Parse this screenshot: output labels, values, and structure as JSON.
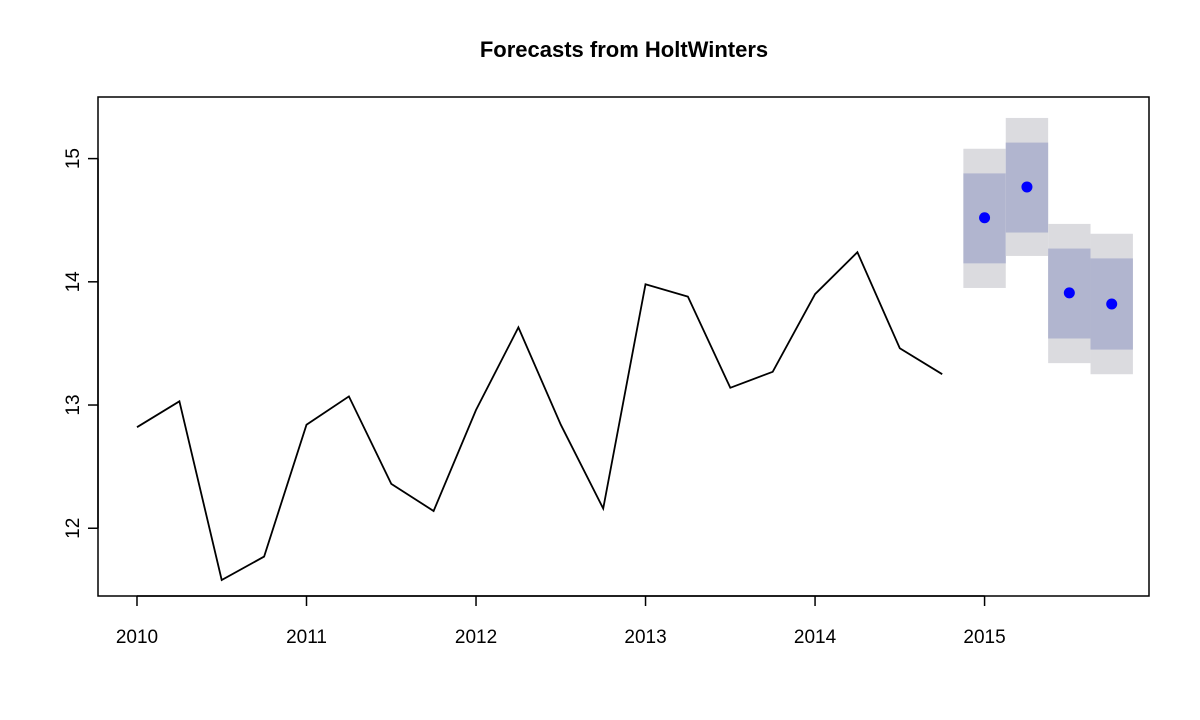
{
  "chart_data": {
    "type": "line",
    "title": "Forecasts from HoltWinters",
    "xlabel": "",
    "ylabel": "",
    "xlim": [
      2009.77,
      2015.97
    ],
    "ylim": [
      11.45,
      15.5
    ],
    "x_ticks": [
      2010,
      2011,
      2012,
      2013,
      2014,
      2015
    ],
    "x_tick_labels": [
      "2010",
      "2011",
      "2012",
      "2013",
      "2014",
      "2015"
    ],
    "y_ticks": [
      12,
      13,
      14,
      15
    ],
    "y_tick_labels": [
      "12",
      "13",
      "14",
      "15"
    ],
    "grid": false,
    "legend": "none",
    "observed": {
      "x": [
        2010.0,
        2010.25,
        2010.5,
        2010.75,
        2011.0,
        2011.25,
        2011.5,
        2011.75,
        2012.0,
        2012.25,
        2012.5,
        2012.75,
        2013.0,
        2013.25,
        2013.5,
        2013.75,
        2014.0,
        2014.25,
        2014.5,
        2014.75
      ],
      "y": [
        12.82,
        13.03,
        11.58,
        11.77,
        12.84,
        13.07,
        12.36,
        12.14,
        12.96,
        13.63,
        12.84,
        12.16,
        13.98,
        13.88,
        13.14,
        13.27,
        13.9,
        14.24,
        13.46,
        13.25
      ]
    },
    "forecast": {
      "x": [
        2015.0,
        2015.25,
        2015.5,
        2015.75
      ],
      "mean": [
        14.52,
        14.77,
        13.91,
        13.82
      ],
      "lower80": [
        14.15,
        14.4,
        13.54,
        13.45
      ],
      "upper80": [
        14.88,
        15.13,
        14.27,
        14.19
      ],
      "lower95": [
        13.95,
        14.21,
        13.34,
        13.25
      ],
      "upper95": [
        15.08,
        15.33,
        14.47,
        14.39
      ]
    },
    "colors": {
      "line": "#000000",
      "point": "#0000ff",
      "band80": "#b1b5cf",
      "band95": "#dbdbdf",
      "axis": "#000000"
    }
  }
}
